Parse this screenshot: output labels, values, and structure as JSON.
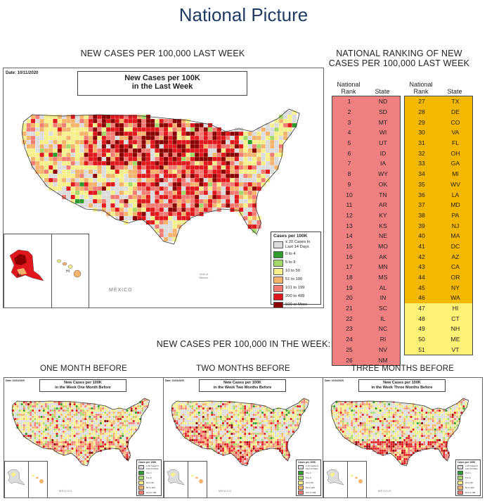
{
  "page_title": "National Picture",
  "main_section": {
    "caption": "NEW CASES PER 100,000 LAST WEEK",
    "map": {
      "date": "Date: 10/11/2020",
      "title_line1": "New Cases per 100K",
      "title_line2": "in the Last Week",
      "mexico_label": "MÉXICO",
      "gulf_label_line1": "Gulf of",
      "gulf_label_line2": "Mexico"
    }
  },
  "legend": {
    "title": "Cases per 100K",
    "items": [
      {
        "label_line1": "≤ 20 Cases in",
        "label_line2": "Last 14 Days",
        "color": "#dcdcdc"
      },
      {
        "label_line1": "0 to 4",
        "label_line2": "",
        "color": "#2e9b2e"
      },
      {
        "label_line1": "5 to 9",
        "label_line2": "",
        "color": "#a5d86b"
      },
      {
        "label_line1": "10 to 50",
        "label_line2": "",
        "color": "#f5f08c"
      },
      {
        "label_line1": "51 to 100",
        "label_line2": "",
        "color": "#f5b36b"
      },
      {
        "label_line1": "101 to 199",
        "label_line2": "",
        "color": "#f27b74"
      },
      {
        "label_line1": "200 to 499",
        "label_line2": "",
        "color": "#e0171c"
      },
      {
        "label_line1": "500 or More",
        "label_line2": "",
        "color": "#8a0000"
      }
    ]
  },
  "ranking": {
    "caption_line1": "NATIONAL RANKING OF NEW",
    "caption_line2": "CASES PER 100,000 LAST WEEK",
    "header_rank_line1": "National",
    "header_rank_line2": "Rank",
    "header_state": "State",
    "colors": {
      "red": "#f08080",
      "orange": "#f5b800",
      "yellow": "#fff176"
    },
    "left": [
      {
        "rank": "1",
        "state": "ND"
      },
      {
        "rank": "2",
        "state": "SD"
      },
      {
        "rank": "3",
        "state": "MT"
      },
      {
        "rank": "4",
        "state": "WI"
      },
      {
        "rank": "5",
        "state": "UT"
      },
      {
        "rank": "6",
        "state": "ID"
      },
      {
        "rank": "7",
        "state": "IA"
      },
      {
        "rank": "8",
        "state": "WY"
      },
      {
        "rank": "9",
        "state": "OK"
      },
      {
        "rank": "10",
        "state": "TN"
      },
      {
        "rank": "11",
        "state": "AR"
      },
      {
        "rank": "12",
        "state": "KY"
      },
      {
        "rank": "13",
        "state": "KS"
      },
      {
        "rank": "14",
        "state": "NE"
      },
      {
        "rank": "15",
        "state": "MO"
      },
      {
        "rank": "16",
        "state": "AK"
      },
      {
        "rank": "17",
        "state": "MN"
      },
      {
        "rank": "18",
        "state": "MS"
      },
      {
        "rank": "19",
        "state": "AL"
      },
      {
        "rank": "20",
        "state": "IN"
      },
      {
        "rank": "21",
        "state": "SC"
      },
      {
        "rank": "22",
        "state": "IL"
      },
      {
        "rank": "23",
        "state": "NC"
      },
      {
        "rank": "24",
        "state": "RI"
      },
      {
        "rank": "25",
        "state": "NV"
      },
      {
        "rank": "26",
        "state": "NM"
      }
    ],
    "right": [
      {
        "rank": "27",
        "state": "TX",
        "tier": "orange"
      },
      {
        "rank": "28",
        "state": "DE",
        "tier": "orange"
      },
      {
        "rank": "29",
        "state": "CO",
        "tier": "orange"
      },
      {
        "rank": "30",
        "state": "VA",
        "tier": "orange"
      },
      {
        "rank": "31",
        "state": "FL",
        "tier": "orange"
      },
      {
        "rank": "32",
        "state": "OH",
        "tier": "orange"
      },
      {
        "rank": "33",
        "state": "GA",
        "tier": "orange"
      },
      {
        "rank": "34",
        "state": "MI",
        "tier": "orange"
      },
      {
        "rank": "35",
        "state": "WV",
        "tier": "orange"
      },
      {
        "rank": "36",
        "state": "LA",
        "tier": "orange"
      },
      {
        "rank": "37",
        "state": "MD",
        "tier": "orange"
      },
      {
        "rank": "38",
        "state": "PA",
        "tier": "orange"
      },
      {
        "rank": "39",
        "state": "NJ",
        "tier": "orange"
      },
      {
        "rank": "40",
        "state": "MA",
        "tier": "orange"
      },
      {
        "rank": "41",
        "state": "DC",
        "tier": "orange"
      },
      {
        "rank": "42",
        "state": "AZ",
        "tier": "orange"
      },
      {
        "rank": "43",
        "state": "CA",
        "tier": "orange"
      },
      {
        "rank": "44",
        "state": "OR",
        "tier": "orange"
      },
      {
        "rank": "45",
        "state": "NY",
        "tier": "orange"
      },
      {
        "rank": "46",
        "state": "WA",
        "tier": "orange"
      },
      {
        "rank": "47",
        "state": "HI",
        "tier": "yellow"
      },
      {
        "rank": "48",
        "state": "CT",
        "tier": "yellow"
      },
      {
        "rank": "49",
        "state": "NH",
        "tier": "yellow"
      },
      {
        "rank": "50",
        "state": "ME",
        "tier": "yellow"
      },
      {
        "rank": "51",
        "state": "VT",
        "tier": "yellow"
      }
    ]
  },
  "history": {
    "caption": "NEW CASES PER 100,000 IN THE WEEK:",
    "maps": [
      {
        "caption": "ONE MONTH BEFORE",
        "date": "Date: 10/11/2020",
        "title_line1": "New Cases per 100K",
        "title_line2": "in the Week One Month Before",
        "intensity": 0.5
      },
      {
        "caption": "TWO MONTHS BEFORE",
        "date": "Date: 10/11/2020",
        "title_line1": "New Cases per 100K",
        "title_line2": "in the Week Two Months Before",
        "intensity": 0.6
      },
      {
        "caption": "THREE MONTHS BEFORE",
        "date": "Date: 10/11/2020",
        "title_line1": "New Cases per 100K",
        "title_line2": "in the Week Three Months Before",
        "intensity": 0.7
      }
    ]
  }
}
